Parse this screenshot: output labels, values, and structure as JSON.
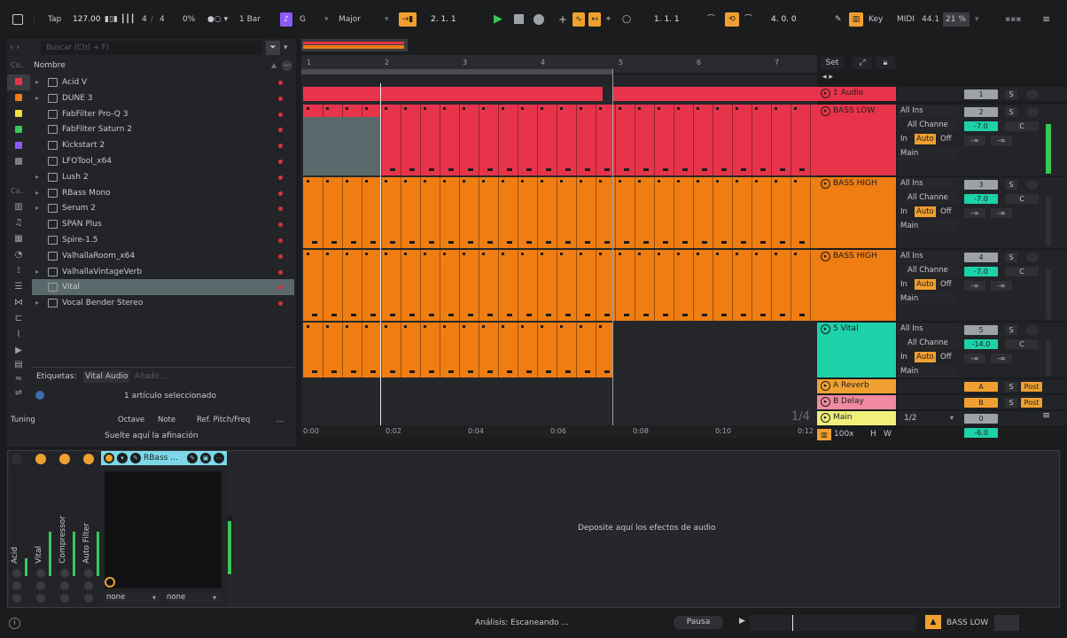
{
  "transport": {
    "tap": "Tap",
    "tempo": "127.00",
    "time_sig_num": "4",
    "time_sig_den": "4",
    "swing": "0%",
    "quantize": "1 Bar",
    "key_root": "G",
    "scale": "Major",
    "position": "2.   1.   1",
    "loop_start": "1.   1.   1",
    "loop_length": "4.   0.   0",
    "key_label": "Key",
    "midi_label": "MIDI",
    "sample_rate": "44.1",
    "cpu": "21 %"
  },
  "browser": {
    "search_placeholder": "Buscar (Ctrl + F)",
    "col_header": "Nombre",
    "cat_header": "Co..",
    "cat_header2": "Ca..",
    "items": [
      {
        "name": "Acid V",
        "expand": true
      },
      {
        "name": "DUNE 3",
        "expand": true
      },
      {
        "name": "FabFilter Pro-Q 3",
        "expand": false
      },
      {
        "name": "FabFilter Saturn 2",
        "expand": false
      },
      {
        "name": "Kickstart 2",
        "expand": false
      },
      {
        "name": "LFOTool_x64",
        "expand": false
      },
      {
        "name": "Lush 2",
        "expand": true
      },
      {
        "name": "RBass Mono",
        "expand": true
      },
      {
        "name": "Serum 2",
        "expand": true
      },
      {
        "name": "SPAN Plus",
        "expand": false
      },
      {
        "name": "Spire-1.5",
        "expand": false
      },
      {
        "name": "ValhallaRoom_x64",
        "expand": false
      },
      {
        "name": "ValhallaVintageVerb",
        "expand": true
      },
      {
        "name": "Vital",
        "expand": false
      },
      {
        "name": "Vocal Bender Stereo",
        "expand": true
      }
    ],
    "tags_label": "Etiquetas:",
    "tag_value": "Vital Audio",
    "tag_add": "Añadir...",
    "selection_status": "1 artículo seleccionado",
    "tuning_cols": [
      "Tuning",
      "Octave",
      "Note",
      "Ref. Pitch/Freq",
      "..."
    ],
    "tuning_drop": "Suelte aquí la afinación"
  },
  "arrangement": {
    "bars": [
      "1",
      "2",
      "3",
      "4",
      "5",
      "6",
      "7"
    ],
    "times": [
      "0:00",
      "0:02",
      "0:04",
      "0:06",
      "0:08",
      "0:10",
      "0:12"
    ],
    "set_label": "Set",
    "zoom": "100x",
    "fraction": "1/4",
    "h_btn": "H",
    "w_btn": "W"
  },
  "tracks": [
    {
      "name": "1 Audio",
      "color": "#e8344a",
      "in": "",
      "num": "1"
    },
    {
      "name": "BASS LOW",
      "color": "#e8344a",
      "in": "All Ins",
      "chan": "All Channe",
      "num": "2",
      "vol": "-7.0",
      "pan": "C",
      "main": "Main"
    },
    {
      "name": "BASS HIGH",
      "color": "#ef7d12",
      "in": "All Ins",
      "chan": "All Channe",
      "num": "3",
      "vol": "-7.0",
      "pan": "C",
      "main": "Main"
    },
    {
      "name": "BASS HIGH",
      "color": "#ef7d12",
      "in": "All Ins",
      "chan": "All Channe",
      "num": "4",
      "vol": "-7.0",
      "pan": "C",
      "main": "Main"
    },
    {
      "name": "5 Vital",
      "color": "#1dd1a8",
      "in": "All Ins",
      "chan": "All Channe",
      "num": "5",
      "vol": "-14.0",
      "pan": "C",
      "main": "Main"
    },
    {
      "name": "A Reverb",
      "color": "#f0a030",
      "letter": "A",
      "send": "Post"
    },
    {
      "name": "B Delay",
      "color": "#f08aa0",
      "letter": "B",
      "send": "Post"
    },
    {
      "name": "Main",
      "color": "#f0f07a",
      "ratio": "1/2",
      "num": "0",
      "vol": "-6.0"
    }
  ],
  "monitor": {
    "in": "In",
    "auto": "Auto",
    "off": "Off",
    "inf": "-∞",
    "s": "S"
  },
  "devices": {
    "chain": [
      "Acid",
      "Vital",
      "Compressor",
      "Auto Filter"
    ],
    "rack_title": "RBass ...",
    "sel1": "none",
    "sel2": "none",
    "drop_hint": "Deposite aquí los efectos de audio"
  },
  "status": {
    "text": "Análisis: Escaneando ...",
    "pause": "Pausa",
    "track": "BASS LOW"
  }
}
